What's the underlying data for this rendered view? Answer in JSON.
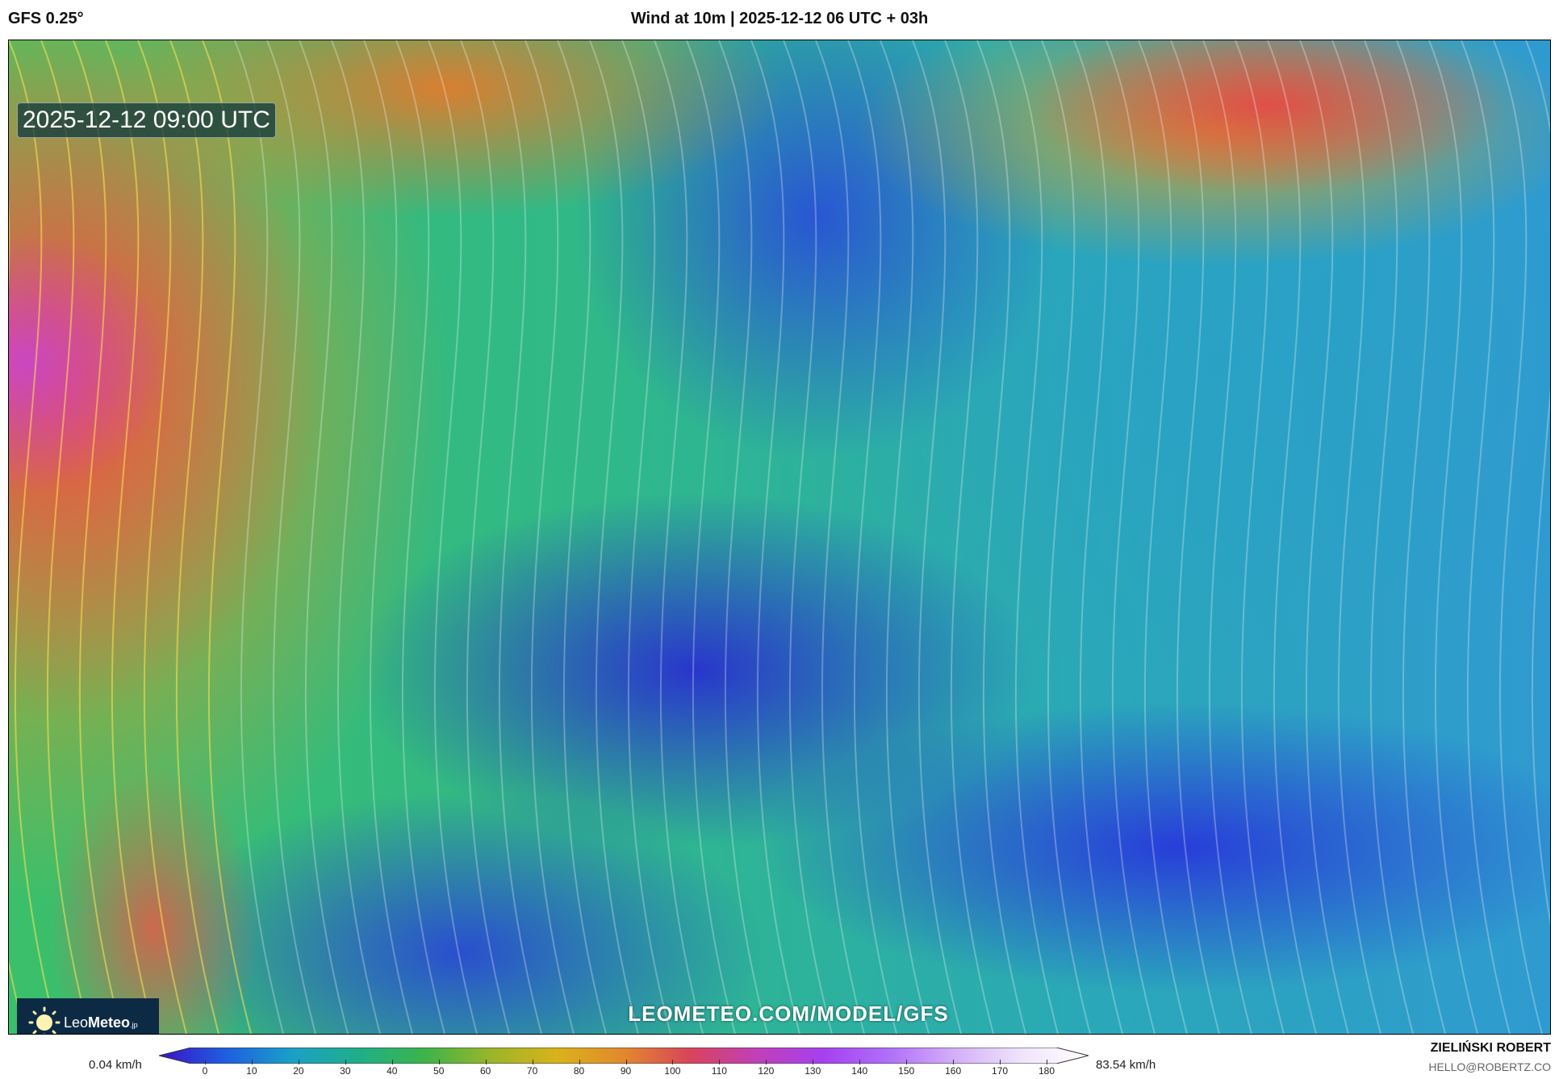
{
  "header": {
    "model": "GFS 0.25°",
    "title": "Wind at 10m | 2025-12-12 06 UTC + 03h"
  },
  "map": {
    "valid_time": "2025-12-12 09:00 UTC",
    "watermark": "LEOMETEO.COM/MODEL/GFS",
    "logo": {
      "name_light": "Leo",
      "name_bold": "Meteo",
      "suffix": ".jp"
    }
  },
  "legend": {
    "min_label": "0.04 km/h",
    "max_label": "83.54 km/h",
    "ticks": [
      "0",
      "10",
      "20",
      "30",
      "40",
      "50",
      "60",
      "70",
      "80",
      "90",
      "100",
      "110",
      "120",
      "130",
      "140",
      "150",
      "160",
      "170",
      "180"
    ],
    "colors": [
      "#3a12c8",
      "#1f5ee0",
      "#1aa0c8",
      "#1fae8a",
      "#3cb44a",
      "#9ab52a",
      "#d9b21a",
      "#e2882e",
      "#d8445a",
      "#c040b8",
      "#a640f0",
      "#b070f8",
      "#d4b0f8",
      "#f0e4fc",
      "#ffffff"
    ]
  },
  "footer": {
    "author": "ZIELIŃSKI ROBERT",
    "email": "HELLO@ROBERTZ.CO"
  }
}
